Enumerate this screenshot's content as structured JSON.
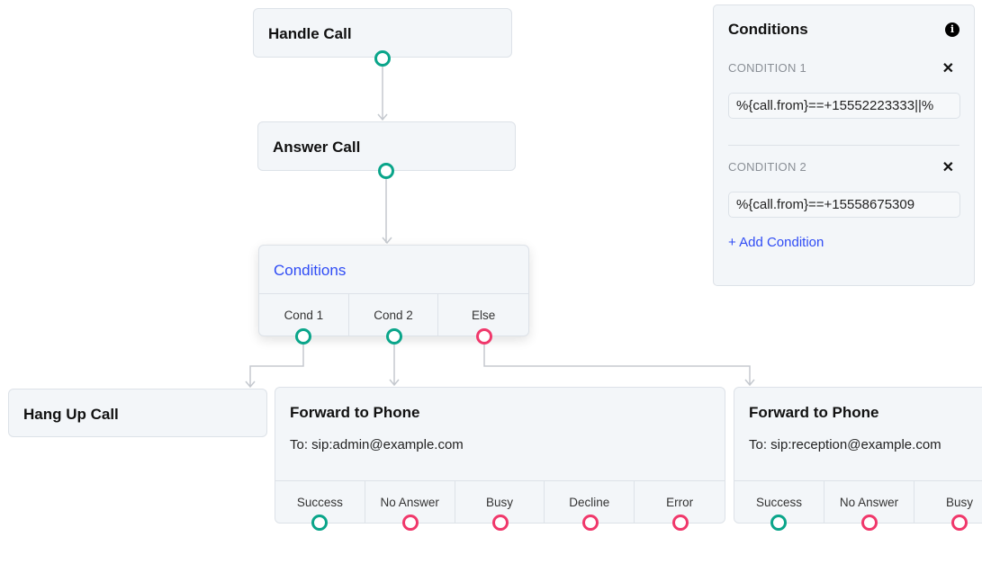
{
  "colors": {
    "success": "#0aa58a",
    "failure": "#f0386b",
    "accent": "#2f4cf5"
  },
  "nodes": {
    "handle_call": {
      "title": "Handle Call"
    },
    "answer_call": {
      "title": "Answer Call"
    },
    "conditions": {
      "title": "Conditions",
      "outputs": [
        "Cond 1",
        "Cond 2",
        "Else"
      ]
    },
    "hang_up": {
      "title": "Hang Up Call"
    },
    "forward1": {
      "title": "Forward to Phone",
      "to": "To: sip:admin@example.com",
      "outputs": [
        "Success",
        "No Answer",
        "Busy",
        "Decline",
        "Error"
      ]
    },
    "forward2": {
      "title": "Forward to Phone",
      "to": "To: sip:reception@example.com",
      "outputs": [
        "Success",
        "No Answer",
        "Busy"
      ]
    }
  },
  "panel": {
    "title": "Conditions",
    "info_icon": "info-icon",
    "conditions": [
      {
        "label": "CONDITION 1",
        "value": "%{call.from}==+15552223333||%"
      },
      {
        "label": "CONDITION 2",
        "value": "%{call.from}==+15558675309"
      }
    ],
    "add_label": "+ Add Condition",
    "remove_icon": "close-icon"
  }
}
